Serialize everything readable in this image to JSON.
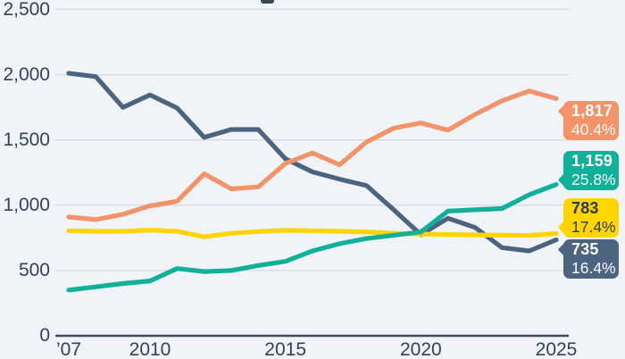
{
  "chart_data": {
    "type": "line",
    "title": "",
    "grid": true,
    "legend_position": "right-end-value-labels",
    "xlim": [
      2007,
      2025
    ],
    "ylim": [
      0,
      2500
    ],
    "years": [
      2007,
      2008,
      2009,
      2010,
      2011,
      2012,
      2013,
      2014,
      2015,
      2016,
      2017,
      2018,
      2019,
      2020,
      2021,
      2022,
      2023,
      2024,
      2025
    ],
    "x_tick_labels": [
      "’07",
      "2010",
      "2015",
      "2020",
      "2025"
    ],
    "x_tick_years": [
      2007,
      2010,
      2015,
      2020,
      2025
    ],
    "y_ticks": [
      "0",
      "500",
      "1,000",
      "1,500",
      "2,000",
      "2,500"
    ],
    "y_tick_values": [
      0,
      500,
      1000,
      1500,
      2000,
      2500
    ],
    "series": [
      {
        "name": "navy-series",
        "color": "#4d6480",
        "end_label": {
          "value": "735",
          "pct": "16.4%"
        },
        "values": [
          2010,
          1985,
          1750,
          1845,
          1745,
          1520,
          1580,
          1580,
          1355,
          1255,
          1200,
          1150,
          965,
          775,
          900,
          830,
          675,
          650,
          735
        ]
      },
      {
        "name": "orange-series",
        "color": "#f2936a",
        "end_label": {
          "value": "1,817",
          "pct": "40.4%"
        },
        "values": [
          910,
          890,
          930,
          995,
          1030,
          1240,
          1125,
          1140,
          1320,
          1400,
          1310,
          1485,
          1590,
          1630,
          1575,
          1695,
          1800,
          1875,
          1817
        ]
      },
      {
        "name": "yellow-series",
        "color": "#ffd400",
        "label_text_color": "#2b3a4f",
        "end_label": {
          "value": "783",
          "pct": "17.4%"
        },
        "values": [
          805,
          800,
          800,
          810,
          800,
          758,
          785,
          798,
          808,
          805,
          800,
          795,
          785,
          780,
          775,
          772,
          770,
          768,
          783
        ]
      },
      {
        "name": "teal-series",
        "color": "#12b09b",
        "end_label": {
          "value": "1,159",
          "pct": "25.8%"
        },
        "values": [
          350,
          375,
          400,
          420,
          515,
          492,
          500,
          538,
          570,
          650,
          705,
          745,
          770,
          795,
          955,
          965,
          975,
          1080,
          1159
        ]
      }
    ]
  },
  "colors": {
    "background": "#f0f4f8",
    "grid_line": "#d5dbe3",
    "axis_line": "#3e4a5e",
    "tick_text": "#31425b"
  }
}
